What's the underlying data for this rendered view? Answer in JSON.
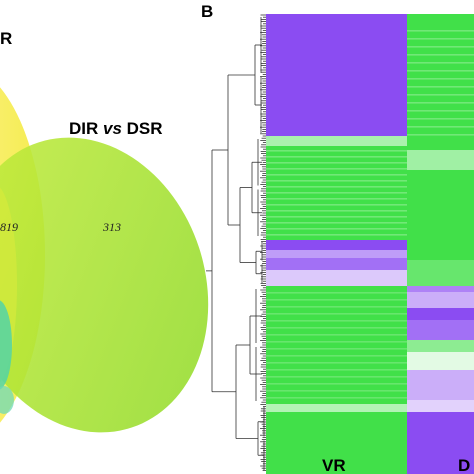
{
  "panelA": {
    "top_label": "R",
    "set_label_prefix": "DIR ",
    "set_label_vs": "vs",
    "set_label_suffix": " DSR",
    "count_overlap": "819",
    "count_unique": "313",
    "colors": {
      "yellow_set": "#f5ef5a",
      "green_set": "#9be02c",
      "teal_region": "#52d3a6"
    }
  },
  "panelB": {
    "panel_letter": "B",
    "columns": [
      "VR",
      "D"
    ],
    "colors": {
      "purple": "#8b4cf2",
      "green": "#41e049",
      "white": "#ffffff"
    }
  }
}
